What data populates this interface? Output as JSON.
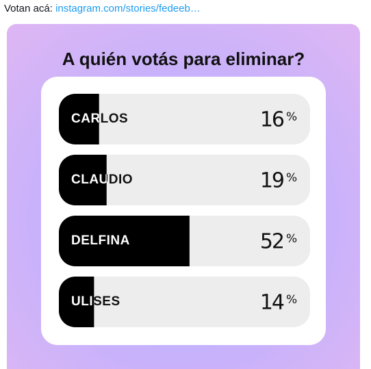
{
  "tweet": {
    "text": "Votan acá:",
    "link": "instagram.com/stories/fedeeb…"
  },
  "poll": {
    "title": "A quién votás para eliminar?",
    "unit": "%",
    "options": [
      {
        "name": "CARLOS",
        "percent": 16
      },
      {
        "name": "CLAUDIO",
        "percent": 19
      },
      {
        "name": "DELFINA",
        "percent": 52
      },
      {
        "name": "ULISES",
        "percent": 14
      }
    ]
  }
}
